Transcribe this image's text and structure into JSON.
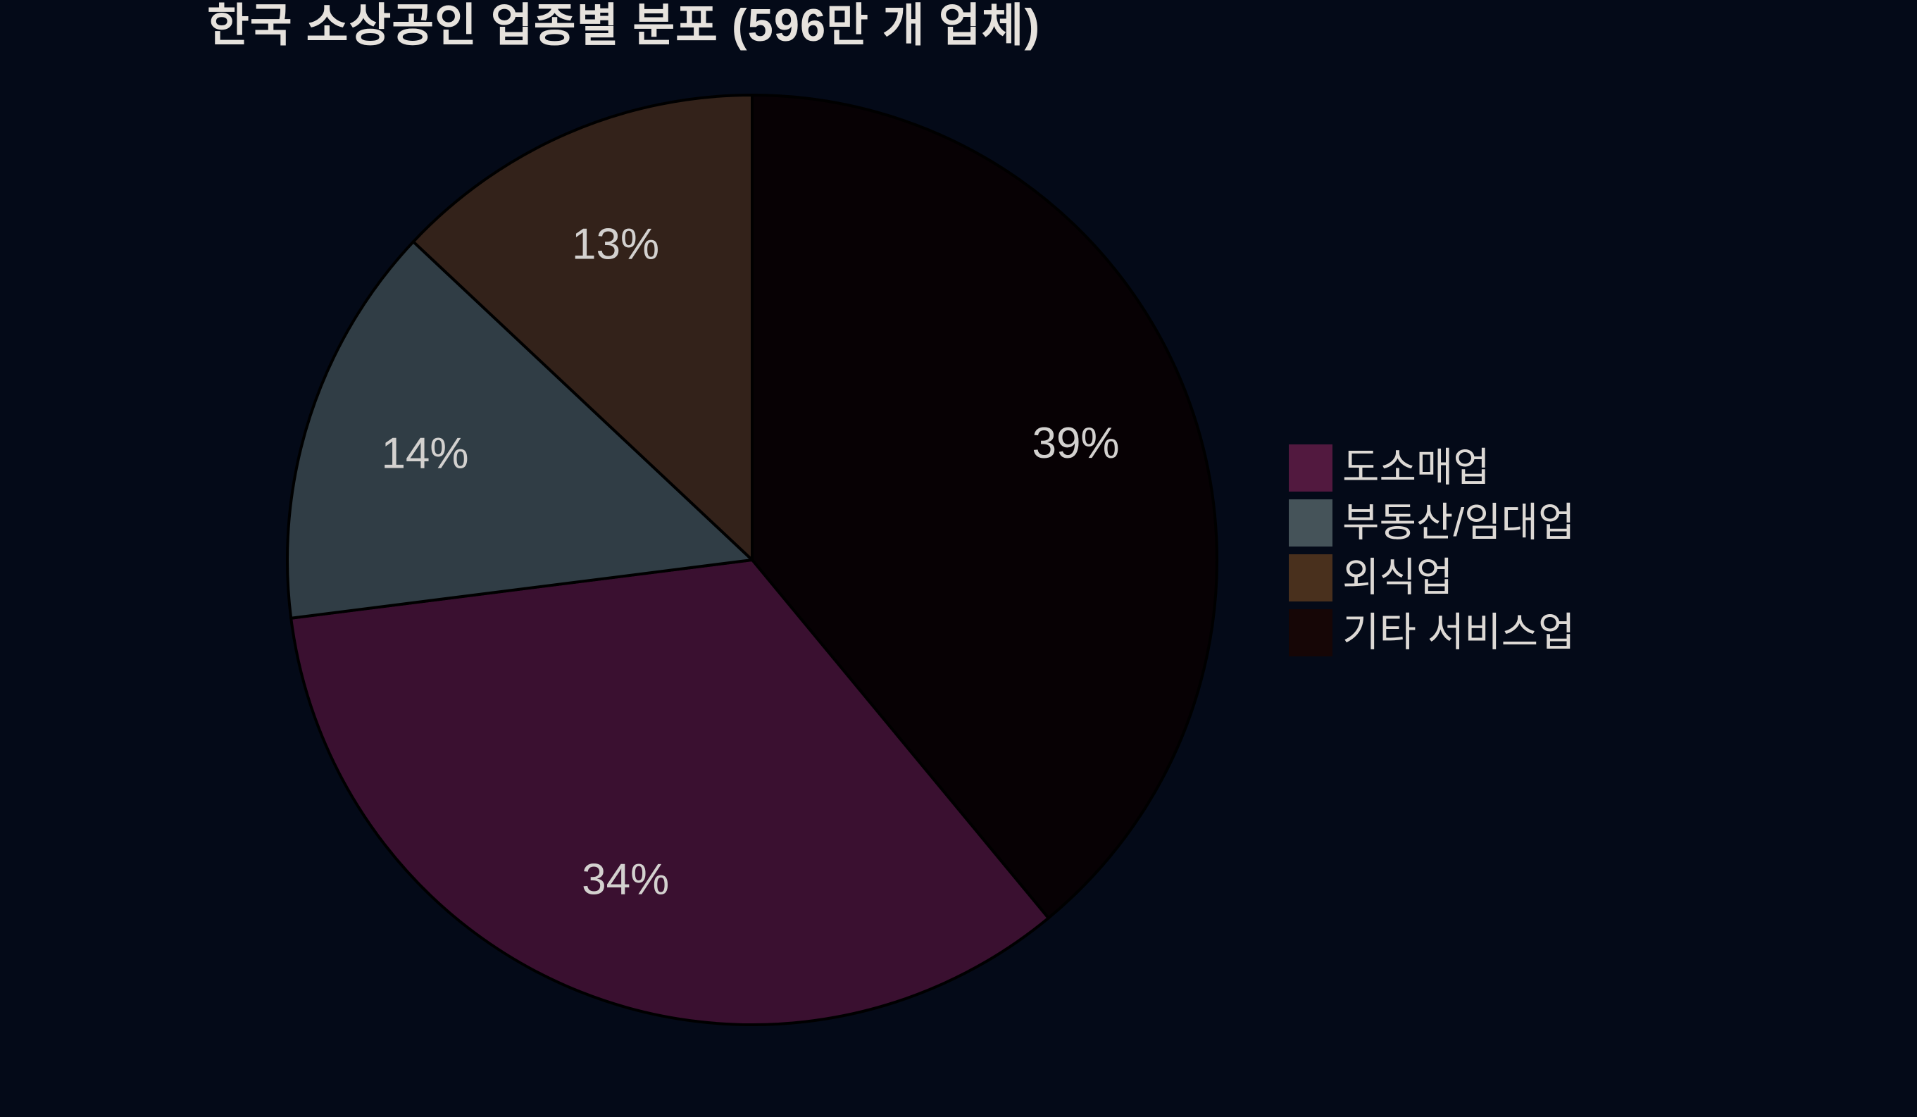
{
  "page": {
    "background_color": "#040a18",
    "title_color": "#e6e2dd",
    "label_color": "#d3d1cf",
    "legend_text_color": "#ddd9d5"
  },
  "chart_data": {
    "type": "pie",
    "title": "한국 소상공인 업종별 분포 (596만 개 업체)",
    "total_businesses_label": "596만 개 업체",
    "slices": [
      {
        "label": "도소매업",
        "value": 34,
        "pct_label": "34%",
        "slice_color": "#3a1030",
        "swatch_color": "#52193f"
      },
      {
        "label": "부동산/임대업",
        "value": 14,
        "pct_label": "14%",
        "slice_color": "#303d45",
        "swatch_color": "#455359"
      },
      {
        "label": "외식업",
        "value": 13,
        "pct_label": "13%",
        "slice_color": "#33221a",
        "swatch_color": "#49301d"
      },
      {
        "label": "기타 서비스업",
        "value": 39,
        "pct_label": "39%",
        "slice_color": "#070104",
        "swatch_color": "#160606"
      }
    ],
    "draw_order": [
      3,
      0,
      1,
      2
    ],
    "start_angle": "12-oclock",
    "direction": "clockwise",
    "label_distance_fraction": 0.74,
    "wedge_edge_color": "#000000",
    "legend_position": "right",
    "grid": false
  }
}
